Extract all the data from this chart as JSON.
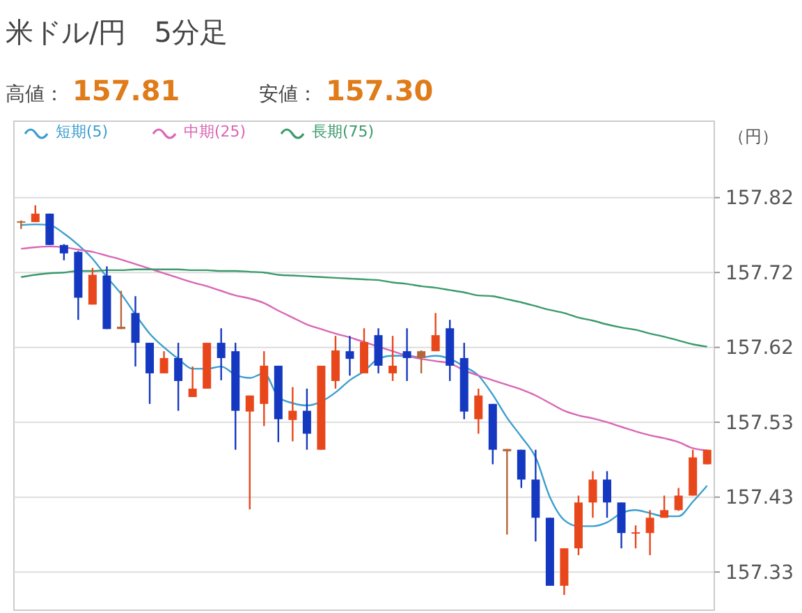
{
  "chart_data": {
    "type": "candlestick",
    "title": "米ドル/円　5分足",
    "annotations": [
      "高値：",
      "157.81",
      "安値：",
      "157.30"
    ],
    "ylabel": "（円）",
    "categories": [
      null,
      null,
      null,
      null,
      null,
      null,
      null,
      null,
      null,
      null,
      null,
      null,
      null,
      null,
      null,
      null,
      null,
      null,
      null,
      null,
      null,
      null,
      null,
      null,
      null,
      null,
      null,
      null,
      null,
      null,
      null,
      null,
      null,
      null,
      null,
      null,
      null,
      null,
      null,
      null,
      null,
      null,
      null,
      null,
      null,
      null,
      null,
      null,
      null
    ],
    "ohlc": [
      [
        157.788,
        157.79,
        157.779,
        157.789
      ],
      [
        157.788,
        157.81,
        157.788,
        157.799
      ],
      [
        157.799,
        157.799,
        157.758,
        157.758
      ],
      [
        157.758,
        157.759,
        157.738,
        157.747
      ],
      [
        157.749,
        157.75,
        157.66,
        157.689
      ],
      [
        157.68,
        157.728,
        157.68,
        157.719
      ],
      [
        157.718,
        157.73,
        157.648,
        157.648
      ],
      [
        157.648,
        157.698,
        157.648,
        157.651
      ],
      [
        157.669,
        157.691,
        157.599,
        157.63
      ],
      [
        157.63,
        157.63,
        157.55,
        157.59
      ],
      [
        157.59,
        157.619,
        157.59,
        157.61
      ],
      [
        157.61,
        157.63,
        157.541,
        157.58
      ],
      [
        157.559,
        157.599,
        157.559,
        157.57
      ],
      [
        157.57,
        157.63,
        157.57,
        157.63
      ],
      [
        157.63,
        157.649,
        157.581,
        157.61
      ],
      [
        157.619,
        157.63,
        157.49,
        157.541
      ],
      [
        157.54,
        157.561,
        157.412,
        157.561
      ],
      [
        157.55,
        157.619,
        157.521,
        157.6
      ],
      [
        157.6,
        157.6,
        157.5,
        157.53
      ],
      [
        157.529,
        157.572,
        157.501,
        157.541
      ],
      [
        157.541,
        157.57,
        157.49,
        157.511
      ],
      [
        157.49,
        157.6,
        157.49,
        157.6
      ],
      [
        157.58,
        157.639,
        157.57,
        157.62
      ],
      [
        157.619,
        157.639,
        157.587,
        157.609
      ],
      [
        157.59,
        157.649,
        157.59,
        157.631
      ],
      [
        157.64,
        157.649,
        157.59,
        157.6
      ],
      [
        157.59,
        157.639,
        157.58,
        157.6
      ],
      [
        157.619,
        157.649,
        157.58,
        157.61
      ],
      [
        157.61,
        157.62,
        157.59,
        157.619
      ],
      [
        157.619,
        157.669,
        157.619,
        157.64
      ],
      [
        157.649,
        157.66,
        157.58,
        157.6
      ],
      [
        157.61,
        157.63,
        157.53,
        157.54
      ],
      [
        157.53,
        157.57,
        157.511,
        157.561
      ],
      [
        157.55,
        157.55,
        157.471,
        157.49
      ],
      [
        157.488,
        157.491,
        157.379,
        157.491
      ],
      [
        157.49,
        157.49,
        157.44,
        157.451
      ],
      [
        157.451,
        157.49,
        157.37,
        157.401
      ],
      [
        157.401,
        157.401,
        157.312,
        157.312
      ],
      [
        157.312,
        157.361,
        157.3,
        157.361
      ],
      [
        157.361,
        157.43,
        157.352,
        157.421
      ],
      [
        157.421,
        157.462,
        157.401,
        157.451
      ],
      [
        157.451,
        157.462,
        157.401,
        157.421
      ],
      [
        157.421,
        157.421,
        157.361,
        157.381
      ],
      [
        157.381,
        157.391,
        157.361,
        157.382
      ],
      [
        157.381,
        157.411,
        157.352,
        157.401
      ],
      [
        157.401,
        157.43,
        157.401,
        157.411
      ],
      [
        157.411,
        157.44,
        157.41,
        157.43
      ],
      [
        157.43,
        157.49,
        157.43,
        157.48
      ],
      [
        157.471,
        157.49,
        157.471,
        157.49
      ]
    ],
    "colors": [
      "#b5653a",
      "#e8471c",
      "#1538c0",
      "#1538c0",
      "#1538c0",
      "#e8471c",
      "#1538c0",
      "#b5653a",
      "#1538c0",
      "#1538c0",
      "#e8471c",
      "#1538c0",
      "#e8471c",
      "#e8471c",
      "#1538c0",
      "#1538c0",
      "#e8471c",
      "#e8471c",
      "#1538c0",
      "#e8471c",
      "#1538c0",
      "#e8471c",
      "#e8471c",
      "#1538c0",
      "#e8471c",
      "#1538c0",
      "#e8471c",
      "#1538c0",
      "#b5653a",
      "#e8471c",
      "#1538c0",
      "#1538c0",
      "#e8471c",
      "#1538c0",
      "#b5653a",
      "#1538c0",
      "#1538c0",
      "#1538c0",
      "#e8471c",
      "#e8471c",
      "#e8471c",
      "#1538c0",
      "#1538c0",
      "#e8471c",
      "#e8471c",
      "#e8471c",
      "#e8471c",
      "#e8471c",
      "#e8471c"
    ],
    "series": [
      {
        "type": "line",
        "name": "短期(5)",
        "color": "#3b9ecf",
        "values": [
          157.784,
          157.785,
          157.784,
          157.773,
          157.758,
          157.74,
          157.716,
          157.694,
          157.667,
          157.642,
          157.624,
          157.609,
          157.596,
          157.596,
          157.599,
          157.588,
          157.584,
          157.59,
          157.559,
          157.551,
          157.548,
          157.553,
          157.565,
          157.581,
          157.593,
          157.609,
          157.613,
          157.613,
          157.611,
          157.613,
          157.609,
          157.599,
          157.587,
          157.562,
          157.532,
          157.507,
          157.48,
          157.428,
          157.398,
          157.39,
          157.39,
          157.395,
          157.407,
          157.411,
          157.407,
          157.403,
          157.403,
          157.422,
          157.443
        ]
      },
      {
        "type": "line",
        "name": "中期(25)",
        "color": "#d966b5",
        "values": [
          157.753,
          157.755,
          157.756,
          157.755,
          157.752,
          157.749,
          157.744,
          157.739,
          157.733,
          157.727,
          157.721,
          157.715,
          157.709,
          157.704,
          157.698,
          157.692,
          157.688,
          157.682,
          157.672,
          157.663,
          157.654,
          157.648,
          157.642,
          157.637,
          157.631,
          157.625,
          157.619,
          157.613,
          157.609,
          157.606,
          157.603,
          157.594,
          157.587,
          157.581,
          157.575,
          157.569,
          157.561,
          157.551,
          157.541,
          157.535,
          157.531,
          157.526,
          157.52,
          157.514,
          157.509,
          157.505,
          157.5,
          157.492,
          157.489
        ]
      },
      {
        "type": "line",
        "name": "長期(75)",
        "color": "#3a9a6a",
        "values": [
          157.716,
          157.719,
          157.721,
          157.722,
          157.724,
          157.724,
          157.725,
          157.725,
          157.726,
          157.726,
          157.726,
          157.726,
          157.725,
          157.725,
          157.724,
          157.724,
          157.723,
          157.722,
          157.719,
          157.718,
          157.717,
          157.716,
          157.715,
          157.714,
          157.713,
          157.712,
          157.709,
          157.707,
          157.704,
          157.702,
          157.699,
          157.696,
          157.692,
          157.691,
          157.687,
          157.683,
          157.678,
          157.673,
          157.669,
          157.663,
          157.659,
          157.654,
          157.65,
          157.647,
          157.642,
          157.638,
          157.633,
          157.628,
          157.625
        ]
      }
    ],
    "ylim": [
      157.28,
      157.92
    ],
    "yticks": [
      {
        "value": 157.82,
        "label": "157.82"
      },
      {
        "value": 157.722,
        "label": "157.72"
      },
      {
        "value": 157.624,
        "label": "157.62"
      },
      {
        "value": 157.526,
        "label": "157.53"
      },
      {
        "value": 157.428,
        "label": "157.43"
      },
      {
        "value": 157.33,
        "label": "157.33"
      }
    ],
    "grid": "y",
    "legend": "top left",
    "tick_labels": "y",
    "marker": "none",
    "line_style": "solid"
  }
}
